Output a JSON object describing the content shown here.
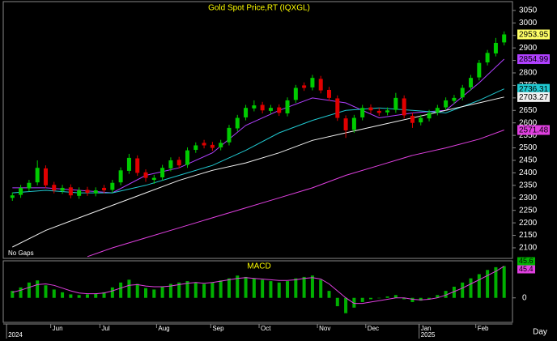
{
  "chart_data": {
    "type": "candlestick",
    "title": "Gold  Spot Price,RT  (IQXGL)",
    "note": "No Gaps",
    "x_unit_label": "Day",
    "up_color": "#00cc00",
    "down_color": "#e00000",
    "xlim": [
      -1,
      60
    ],
    "x": [
      0,
      1,
      2,
      3,
      4,
      5,
      6,
      7,
      8,
      9,
      10,
      11,
      12,
      13,
      14,
      15,
      16,
      17,
      18,
      19,
      20,
      21,
      22,
      23,
      24,
      25,
      26,
      27,
      28,
      29,
      30,
      31,
      32,
      33,
      34,
      35,
      36,
      37,
      38,
      39,
      40,
      41,
      42,
      43,
      44,
      45,
      46,
      47,
      48,
      49,
      50,
      51,
      52,
      53,
      54,
      55,
      56,
      57,
      58,
      59
    ],
    "open": [
      2300,
      2312,
      2338,
      2362,
      2418,
      2352,
      2328,
      2342,
      2308,
      2332,
      2318,
      2340,
      2332,
      2362,
      2408,
      2458,
      2402,
      2372,
      2382,
      2418,
      2452,
      2432,
      2492,
      2520,
      2512,
      2502,
      2522,
      2578,
      2622,
      2658,
      2672,
      2648,
      2662,
      2638,
      2692,
      2750,
      2742,
      2776,
      2732,
      2698,
      2618,
      2572,
      2622,
      2662,
      2648,
      2642,
      2652,
      2698,
      2628,
      2602,
      2618,
      2642,
      2662,
      2688,
      2702,
      2742,
      2782,
      2842,
      2878,
      2922
    ],
    "high": [
      2322,
      2352,
      2372,
      2450,
      2430,
      2364,
      2352,
      2354,
      2342,
      2344,
      2342,
      2352,
      2372,
      2422,
      2476,
      2470,
      2414,
      2392,
      2432,
      2462,
      2464,
      2502,
      2522,
      2532,
      2524,
      2532,
      2592,
      2632,
      2672,
      2690,
      2684,
      2672,
      2674,
      2702,
      2752,
      2762,
      2792,
      2788,
      2744,
      2710,
      2630,
      2632,
      2672,
      2674,
      2660,
      2662,
      2720,
      2710,
      2640,
      2632,
      2652,
      2672,
      2702,
      2712,
      2752,
      2792,
      2852,
      2892,
      2940,
      2966
    ],
    "low": [
      2288,
      2300,
      2326,
      2350,
      2338,
      2318,
      2316,
      2298,
      2296,
      2308,
      2306,
      2318,
      2320,
      2350,
      2396,
      2388,
      2364,
      2356,
      2370,
      2406,
      2418,
      2420,
      2480,
      2498,
      2488,
      2490,
      2510,
      2566,
      2610,
      2646,
      2638,
      2636,
      2628,
      2626,
      2680,
      2728,
      2730,
      2718,
      2688,
      2608,
      2540,
      2560,
      2610,
      2638,
      2628,
      2630,
      2640,
      2618,
      2580,
      2590,
      2606,
      2630,
      2650,
      2676,
      2690,
      2730,
      2770,
      2830,
      2866,
      2910
    ],
    "close": [
      2310,
      2340,
      2360,
      2420,
      2350,
      2330,
      2340,
      2310,
      2330,
      2320,
      2330,
      2330,
      2360,
      2410,
      2460,
      2400,
      2380,
      2380,
      2420,
      2450,
      2430,
      2490,
      2510,
      2510,
      2500,
      2520,
      2580,
      2620,
      2660,
      2670,
      2650,
      2660,
      2640,
      2690,
      2740,
      2740,
      2780,
      2730,
      2700,
      2620,
      2570,
      2620,
      2660,
      2650,
      2640,
      2650,
      2700,
      2630,
      2600,
      2620,
      2640,
      2660,
      2690,
      2700,
      2740,
      2780,
      2840,
      2880,
      2920,
      2953.95
    ],
    "close_tag_color": "#ffff66",
    "overlays": [
      {
        "color": "#b040ff",
        "x": [
          0,
          4,
          8,
          12,
          16,
          20,
          24,
          28,
          32,
          36,
          40,
          44,
          48,
          52,
          56,
          59
        ],
        "values": [
          2340,
          2340,
          2330,
          2320,
          2390,
          2420,
          2480,
          2590,
          2650,
          2700,
          2680,
          2620,
          2640,
          2650,
          2760,
          2854.99
        ]
      },
      {
        "color": "#20c8d0",
        "x": [
          0,
          4,
          8,
          12,
          16,
          20,
          24,
          28,
          32,
          36,
          40,
          44,
          48,
          52,
          56,
          59
        ],
        "values": [
          2320,
          2330,
          2320,
          2320,
          2350,
          2390,
          2430,
          2490,
          2560,
          2610,
          2650,
          2660,
          2650,
          2640,
          2690,
          2736.31
        ]
      },
      {
        "color": "#f0f0f0",
        "x": [
          0,
          4,
          8,
          12,
          16,
          20,
          24,
          28,
          32,
          36,
          40,
          44,
          48,
          52,
          56,
          59
        ],
        "values": [
          2103,
          2170,
          2220,
          2270,
          2320,
          2370,
          2410,
          2440,
          2480,
          2530,
          2560,
          2590,
          2620,
          2650,
          2680,
          2703.27
        ]
      },
      {
        "color": "#e040e0",
        "x": [
          9,
          12,
          16,
          20,
          24,
          28,
          32,
          36,
          40,
          44,
          48,
          52,
          56,
          59
        ],
        "values": [
          2065,
          2100,
          2140,
          2180,
          2220,
          2260,
          2300,
          2340,
          2390,
          2430,
          2470,
          2500,
          2535,
          2571.48
        ]
      }
    ],
    "ylim": [
      2061,
      3082
    ],
    "yticks": [
      2100,
      2150,
      2200,
      2250,
      2300,
      2350,
      2400,
      2450,
      2500,
      2550,
      2600,
      2650,
      2700,
      2750,
      2800,
      2850,
      2900,
      2950,
      3000,
      3050
    ],
    "xticks": [
      {
        "value": 4.6,
        "label": "Jun"
      },
      {
        "value": 10.5,
        "label": "Jul"
      },
      {
        "value": 17.3,
        "label": "Aug"
      },
      {
        "value": 23.8,
        "label": "Sep"
      },
      {
        "value": 29.6,
        "label": "Oct"
      },
      {
        "value": 36.6,
        "label": "Nov"
      },
      {
        "value": 42.4,
        "label": "Dec"
      },
      {
        "value": 48.8,
        "label": "Jan"
      },
      {
        "value": 55.6,
        "label": "Feb"
      }
    ],
    "year_ticks": [
      {
        "value": -0.7,
        "label": "2024"
      },
      {
        "value": 48.8,
        "label": "2025"
      }
    ],
    "macd": {
      "title": "MACD",
      "ylim": [
        -34,
        52
      ],
      "yticks": [
        0
      ],
      "histogram": {
        "color": "#00b000",
        "values": [
          10,
          15,
          22,
          25,
          18,
          12,
          8,
          5,
          4,
          5,
          6,
          8,
          15,
          22,
          26,
          20,
          14,
          12,
          16,
          20,
          22,
          24,
          22,
          20,
          22,
          25,
          28,
          32,
          30,
          28,
          26,
          24,
          22,
          24,
          28,
          30,
          32,
          26,
          10,
          -12,
          -22,
          -14,
          -6,
          -2,
          0,
          2,
          4,
          -2,
          -6,
          -4,
          -2,
          4,
          10,
          16,
          22,
          28,
          34,
          40,
          44,
          45.6
        ]
      },
      "signal": {
        "color": "#e040e0",
        "values": [
          8,
          11,
          15,
          19,
          20,
          18,
          14,
          10,
          7,
          6,
          6,
          7,
          10,
          14,
          18,
          19,
          17,
          16,
          16,
          17,
          19,
          21,
          22,
          21,
          22,
          24,
          26,
          28,
          29,
          28,
          27,
          26,
          25,
          25,
          26,
          28,
          29,
          27,
          20,
          10,
          0,
          -8,
          -8,
          -6,
          -4,
          -2,
          0,
          0,
          -2,
          -3,
          -2,
          0,
          4,
          9,
          14,
          20,
          26,
          32,
          38,
          45.4
        ]
      }
    }
  }
}
